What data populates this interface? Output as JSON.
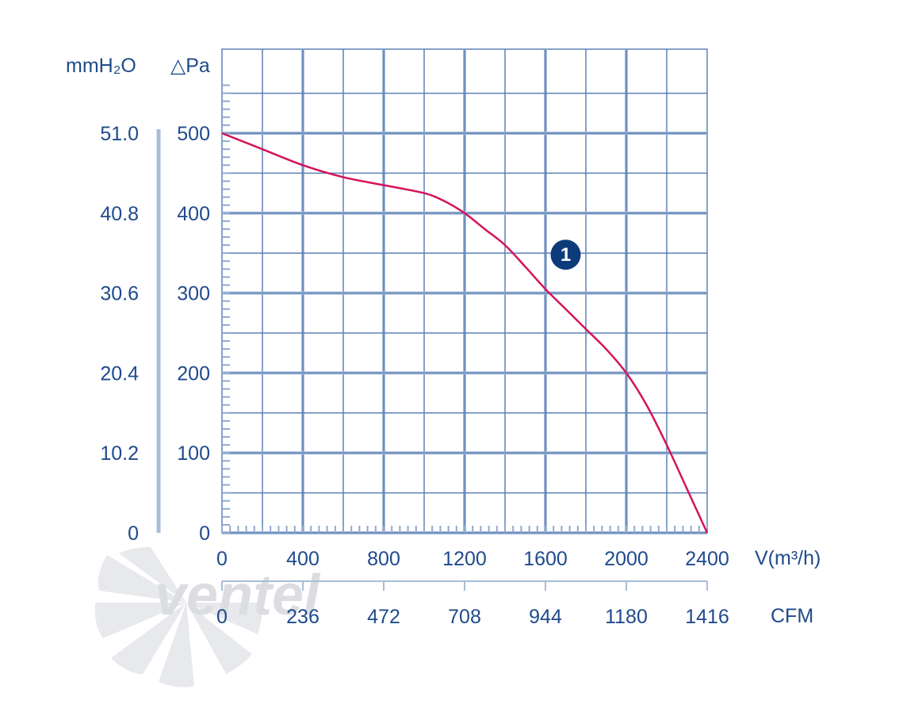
{
  "chart_data": {
    "type": "line",
    "title": "",
    "x_unit_label": "V(m³/h)",
    "x2_unit_label": "CFM",
    "y_unit_label": "△Pa",
    "y2_unit_label": "mmH₂O",
    "x_ticks": [
      "0",
      "400",
      "800",
      "1200",
      "1600",
      "2000",
      "2400"
    ],
    "x2_ticks": [
      "0",
      "236",
      "472",
      "708",
      "944",
      "1180",
      "1416"
    ],
    "y_ticks": [
      "0",
      "100",
      "200",
      "300",
      "400",
      "500"
    ],
    "y2_ticks": [
      "0",
      "10.2",
      "20.4",
      "30.6",
      "40.8",
      "51.0"
    ],
    "xlim": [
      0,
      2400
    ],
    "ylim": [
      0,
      500
    ],
    "grid": true,
    "series": [
      {
        "marker_label": "1",
        "color": "#d4145a",
        "x": [
          0,
          200,
          400,
          600,
          800,
          1000,
          1100,
          1200,
          1300,
          1400,
          1500,
          1600,
          1700,
          1800,
          1900,
          2000,
          2100,
          2200,
          2300,
          2400
        ],
        "y": [
          500,
          480,
          460,
          445,
          435,
          425,
          415,
          400,
          380,
          360,
          333,
          305,
          280,
          255,
          230,
          200,
          160,
          110,
          55,
          0
        ]
      }
    ],
    "annotation_position": {
      "x": 1700,
      "y": 348
    }
  },
  "watermark": "ventel",
  "colors": {
    "text": "#1f4a8c",
    "grid": "#5b82b8",
    "curve": "#d4145a",
    "badge": "#0d3b7a"
  }
}
